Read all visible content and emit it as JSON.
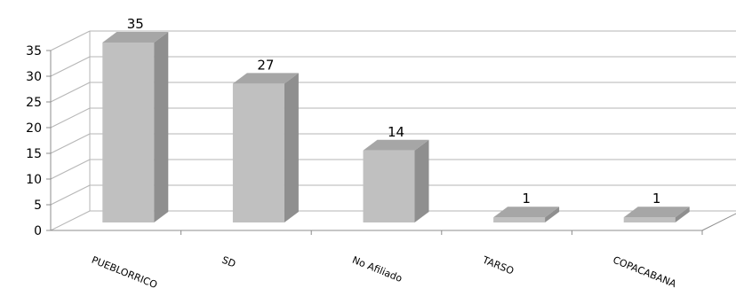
{
  "chart_data": {
    "type": "bar",
    "categories": [
      "PUEBLORRICO",
      "SD",
      "No Afiliado",
      "TARSO",
      "COPACABANA"
    ],
    "values": [
      35,
      27,
      14,
      1,
      1
    ],
    "data_labels": [
      "35",
      "27",
      "14",
      "1",
      "1"
    ],
    "ylim": [
      0,
      35
    ],
    "yticks": [
      "0",
      "5",
      "10",
      "15",
      "20",
      "25",
      "30",
      "35"
    ],
    "grid": true,
    "legend": "none",
    "colors": {
      "bar_front": "#c0c0c0",
      "bar_side": "#8f8f8f",
      "bar_top": "#a6a6a6",
      "grid": "#b5b5b5",
      "axis": "#8c8c8c"
    }
  }
}
